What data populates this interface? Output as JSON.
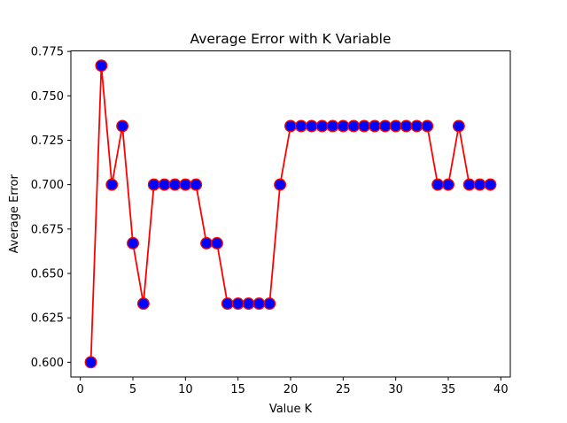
{
  "chart_data": {
    "type": "line",
    "title": "Average Error with K Variable",
    "xlabel": "Value K",
    "ylabel": "Average Error",
    "xlim": [
      -0.9,
      40.9
    ],
    "ylim": [
      0.5917,
      0.7753
    ],
    "xticks": [
      0,
      5,
      10,
      15,
      20,
      25,
      30,
      35,
      40
    ],
    "xtick_labels": [
      "0",
      "5",
      "10",
      "15",
      "20",
      "25",
      "30",
      "35",
      "40"
    ],
    "yticks": [
      0.6,
      0.625,
      0.65,
      0.675,
      0.7,
      0.725,
      0.75,
      0.775
    ],
    "ytick_labels": [
      "0.600",
      "0.625",
      "0.650",
      "0.675",
      "0.700",
      "0.725",
      "0.750",
      "0.775"
    ],
    "grid": false,
    "series": [
      {
        "name": "Average Error",
        "line_color": "#ff0000",
        "marker_face": "#0000ff",
        "marker_edge": "#ff0000",
        "x": [
          1,
          2,
          3,
          4,
          5,
          6,
          7,
          8,
          9,
          10,
          11,
          12,
          13,
          14,
          15,
          16,
          17,
          18,
          19,
          20,
          21,
          22,
          23,
          24,
          25,
          26,
          27,
          28,
          29,
          30,
          31,
          32,
          33,
          34,
          35,
          36,
          37,
          38,
          39
        ],
        "values": [
          0.6,
          0.767,
          0.7,
          0.733,
          0.667,
          0.633,
          0.7,
          0.7,
          0.7,
          0.7,
          0.7,
          0.667,
          0.667,
          0.633,
          0.633,
          0.633,
          0.633,
          0.633,
          0.7,
          0.733,
          0.733,
          0.733,
          0.733,
          0.733,
          0.733,
          0.733,
          0.733,
          0.733,
          0.733,
          0.733,
          0.733,
          0.733,
          0.733,
          0.7,
          0.7,
          0.733,
          0.7,
          0.7,
          0.7
        ]
      }
    ]
  }
}
